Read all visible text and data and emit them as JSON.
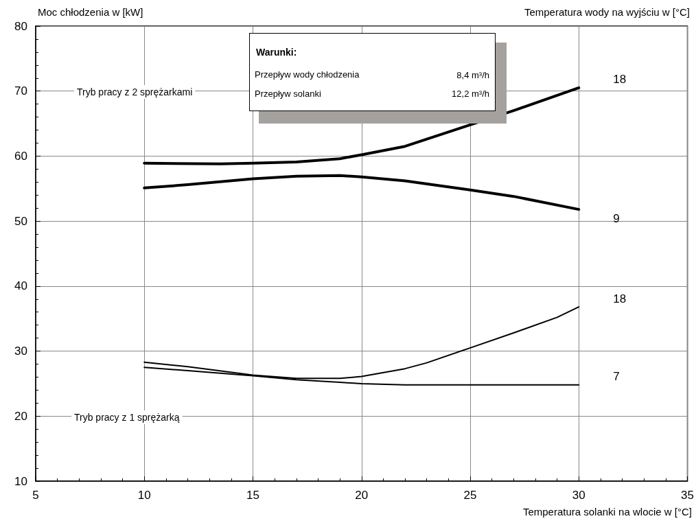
{
  "chart_data": {
    "type": "line",
    "xlabel": "Temperatura solanki na wlocie w [°C]",
    "ylabel": "Moc chłodzenia w [kW]",
    "legend_title": "Temperatura wody na wyjściu w [°C]",
    "x": [
      10,
      12,
      15,
      17,
      19,
      20,
      22,
      25,
      27,
      30
    ],
    "series": [
      {
        "name": "18",
        "color": "#000000",
        "x": [
          10,
          13.5,
          15,
          17,
          19,
          20,
          22,
          25,
          27,
          30
        ],
        "values": [
          58.9,
          58.8,
          58.9,
          59.1,
          59.6,
          60.2,
          61.5,
          64.8,
          67.0,
          70.5
        ]
      },
      {
        "name": "9",
        "color": "#000000",
        "values": [
          55.1,
          55.6,
          56.5,
          56.9,
          57.0,
          56.8,
          56.2,
          54.8,
          53.8,
          51.8
        ]
      },
      {
        "name": "18",
        "color": "#000000",
        "x": [
          10,
          12,
          15,
          17,
          19,
          20,
          22,
          23,
          25,
          27,
          29,
          30
        ],
        "values": [
          28.3,
          27.6,
          26.3,
          25.8,
          25.8,
          26.1,
          27.3,
          28.2,
          30.5,
          32.8,
          35.2,
          36.8
        ]
      },
      {
        "name": "7",
        "color": "#000000",
        "values": [
          27.5,
          27.0,
          26.2,
          25.6,
          25.2,
          25.0,
          24.8,
          24.8,
          24.8,
          24.8
        ]
      }
    ],
    "xlim": [
      5,
      35
    ],
    "xticks": [
      5,
      10,
      15,
      20,
      25,
      30,
      35
    ],
    "ylim": [
      10,
      80
    ],
    "yticks": [
      10,
      20,
      30,
      40,
      50,
      60,
      70,
      80
    ],
    "grid": true,
    "legend": "right",
    "marker": "none",
    "line_style": "solid",
    "annotations": [
      "Tryb pracy z 2 sprężarkami",
      "Tryb pracy z 1 sprężarką",
      "Warunki:",
      "Przepływ wody chłodzenia",
      "8,4 m³/h",
      "Przepływ solanki",
      "12,2 m³/h"
    ]
  }
}
